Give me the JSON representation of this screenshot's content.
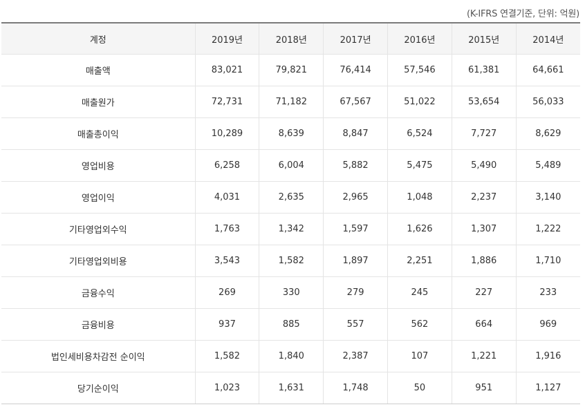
{
  "unit_note": "(K-IFRS 연결기준, 단위: 억원)",
  "table": {
    "header": {
      "account": "계정",
      "years": [
        "2019년",
        "2018년",
        "2017년",
        "2016년",
        "2015년",
        "2014년"
      ]
    },
    "rows": [
      {
        "label": "매출액",
        "values": [
          "83,021",
          "79,821",
          "76,414",
          "57,546",
          "61,381",
          "64,661"
        ]
      },
      {
        "label": "매출원가",
        "values": [
          "72,731",
          "71,182",
          "67,567",
          "51,022",
          "53,654",
          "56,033"
        ]
      },
      {
        "label": "매출총이익",
        "values": [
          "10,289",
          "8,639",
          "8,847",
          "6,524",
          "7,727",
          "8,629"
        ]
      },
      {
        "label": "영업비용",
        "values": [
          "6,258",
          "6,004",
          "5,882",
          "5,475",
          "5,490",
          "5,489"
        ]
      },
      {
        "label": "영업이익",
        "values": [
          "4,031",
          "2,635",
          "2,965",
          "1,048",
          "2,237",
          "3,140"
        ]
      },
      {
        "label": "기타영업외수익",
        "values": [
          "1,763",
          "1,342",
          "1,597",
          "1,626",
          "1,307",
          "1,222"
        ]
      },
      {
        "label": "기타영업외비용",
        "values": [
          "3,543",
          "1,582",
          "1,897",
          "2,251",
          "1,886",
          "1,710"
        ]
      },
      {
        "label": "금융수익",
        "values": [
          "269",
          "330",
          "279",
          "245",
          "227",
          "233"
        ]
      },
      {
        "label": "금융비용",
        "values": [
          "937",
          "885",
          "557",
          "562",
          "664",
          "969"
        ]
      },
      {
        "label": "법인세비용차감전 순이익",
        "values": [
          "1,582",
          "1,840",
          "2,387",
          "107",
          "1,221",
          "1,916"
        ]
      },
      {
        "label": "당기순이익",
        "values": [
          "1,023",
          "1,631",
          "1,748",
          "50",
          "951",
          "1,127"
        ]
      }
    ]
  }
}
